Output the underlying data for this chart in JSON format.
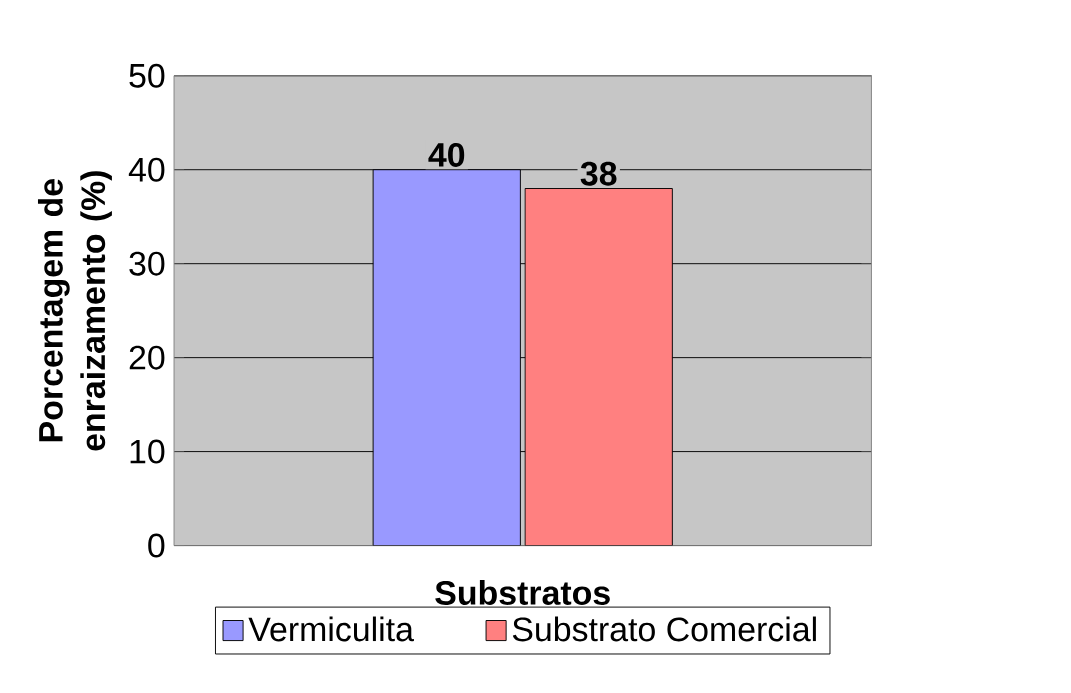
{
  "chart_data": {
    "type": "bar",
    "xlabel": "Substratos",
    "ylabel": "Porcentagem de enraizamento (%)",
    "categories": [
      null
    ],
    "series": [
      {
        "name": "Vermiculita",
        "color": "#9999ff",
        "values": [
          40
        ]
      },
      {
        "name": "Substrato Comercial",
        "color": "#ff8080",
        "values": [
          38
        ]
      }
    ],
    "ylim": [
      0,
      50
    ],
    "yticks": [
      0,
      10,
      20,
      30,
      40,
      50
    ],
    "grid": "y",
    "legend": "bottom",
    "data_labels": true
  }
}
